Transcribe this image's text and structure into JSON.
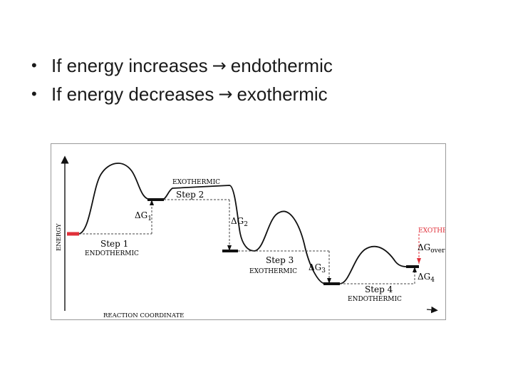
{
  "bullets": [
    {
      "before": "If energy increases",
      "arrow": "→",
      "after": "endothermic"
    },
    {
      "before": "If energy decreases",
      "arrow": "→",
      "after": "exothermic"
    }
  ],
  "diagram": {
    "y_axis_label": "ENERGY",
    "x_axis_label": "REACTION COORDINATE",
    "steps": [
      {
        "step": "Step 1",
        "type": "ENDOTHERMIC",
        "delta": "ΔG",
        "sub": "1"
      },
      {
        "step": "Step 2",
        "type": "EXOTHERMIC",
        "delta": "ΔG",
        "sub": "2"
      },
      {
        "step": "Step 3",
        "type": "EXOTHERMIC",
        "delta": "ΔG",
        "sub": "3"
      },
      {
        "step": "Step 4",
        "type": "ENDOTHERMIC",
        "delta": "ΔG",
        "sub": "4"
      }
    ],
    "overall": {
      "type": "EXOTHERMIC",
      "delta": "ΔG",
      "sub": "overall"
    },
    "colors": {
      "red": "#e0303a",
      "line": "#111111",
      "dash": "#444444"
    }
  }
}
